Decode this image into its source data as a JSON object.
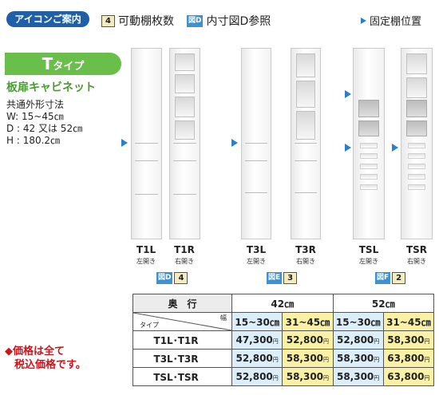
{
  "legend": {
    "title": "アイコンご案内",
    "badge_num_sample": "4",
    "movable_shelves_label": "可動棚枚数",
    "badge_fig_sample": "図D",
    "inner_dim_label": "内寸図D参照",
    "fixed_shelf_label": "固定棚位置"
  },
  "type": {
    "letter": "T",
    "suffix": "タイプ",
    "cabinet_title": "板扉キャビネット",
    "dims_header": "共通外形寸法",
    "dims": [
      "W: 15~45㎝",
      "D : 42 又は 52㎝",
      "H : 180.2㎝"
    ]
  },
  "cabinets": [
    {
      "name": "T1L",
      "opening": "左開き"
    },
    {
      "name": "T1R",
      "opening": "右開き"
    },
    {
      "name": "T3L",
      "opening": "左開き"
    },
    {
      "name": "T3R",
      "opening": "右開き"
    },
    {
      "name": "TSL",
      "opening": "左開き"
    },
    {
      "name": "TSR",
      "opening": "右開き"
    }
  ],
  "refs": [
    {
      "fig": "図D",
      "shelves": "4"
    },
    {
      "fig": "図E",
      "shelves": "3"
    },
    {
      "fig": "図F",
      "shelves": "2"
    }
  ],
  "table": {
    "depth_label": "奥　行",
    "depth_42": "42㎝",
    "depth_52": "52㎝",
    "width_label": "幅",
    "type_label": "タイプ",
    "width_ranges": [
      "15~30㎝",
      "31~45㎝",
      "15~30㎝",
      "31~45㎝"
    ],
    "yen_unit": "円",
    "rows": [
      {
        "label": "T1L･T1R",
        "prices": [
          "47,300",
          "52,800",
          "52,800",
          "58,300"
        ]
      },
      {
        "label": "T3L･T3R",
        "prices": [
          "52,800",
          "58,300",
          "58,300",
          "63,800"
        ]
      },
      {
        "label": "TSL･TSR",
        "prices": [
          "52,800",
          "58,300",
          "58,300",
          "63,800"
        ]
      }
    ]
  },
  "note": {
    "line1": "◆価格は全て",
    "line2": "税込価格です。"
  },
  "colors": {
    "legend_blue": "#1f5fa8",
    "type_green": "#6abf4b",
    "arrow_blue": "#2a7fc6",
    "price_blue": "#dbeef9",
    "price_yellow": "#fbf1a6",
    "note_red": "#d0121b"
  }
}
